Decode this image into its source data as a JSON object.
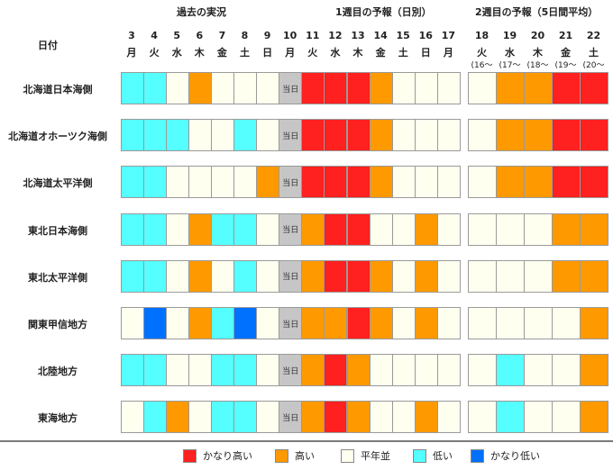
{
  "header": {
    "row_label_header": "日付",
    "section_past": "過去の実況",
    "section_week1": "1週目の予報（日別）",
    "section_week2": "2週目の予報（5日間平均）"
  },
  "colors": {
    "very_high": "#ff2020",
    "high": "#ff9900",
    "normal": "#fffff0",
    "low": "#55ffff",
    "very_low": "#0070ff",
    "today": "#c6c6c6"
  },
  "legend": [
    {
      "key": "very_high",
      "label": "かなり高い"
    },
    {
      "key": "high",
      "label": "高い"
    },
    {
      "key": "normal",
      "label": "平年並"
    },
    {
      "key": "low",
      "label": "低い"
    },
    {
      "key": "very_low",
      "label": "かなり低い"
    }
  ],
  "chart_data": {
    "type": "table",
    "today_label": "当日",
    "days": [
      {
        "day": "3",
        "dow": "月"
      },
      {
        "day": "4",
        "dow": "火"
      },
      {
        "day": "5",
        "dow": "水"
      },
      {
        "day": "6",
        "dow": "木"
      },
      {
        "day": "7",
        "dow": "金"
      },
      {
        "day": "8",
        "dow": "土"
      },
      {
        "day": "9",
        "dow": "日"
      },
      {
        "day": "10",
        "dow": "月"
      },
      {
        "day": "11",
        "dow": "火"
      },
      {
        "day": "12",
        "dow": "水"
      },
      {
        "day": "13",
        "dow": "木"
      },
      {
        "day": "14",
        "dow": "金"
      },
      {
        "day": "15",
        "dow": "土"
      },
      {
        "day": "16",
        "dow": "日"
      },
      {
        "day": "17",
        "dow": "月"
      }
    ],
    "today_index": 7,
    "periods": [
      {
        "day": "18",
        "dow": "火",
        "range1": "(16～",
        "range2": "20日)"
      },
      {
        "day": "19",
        "dow": "水",
        "range1": "(17～",
        "range2": "21日)"
      },
      {
        "day": "20",
        "dow": "木",
        "range1": "(18～",
        "range2": "22日)"
      },
      {
        "day": "21",
        "dow": "金",
        "range1": "(19～",
        "range2": "23日)"
      },
      {
        "day": "22",
        "dow": "土",
        "range1": "(20～",
        "range2": "24日)"
      }
    ],
    "regions": [
      {
        "name": "北海道日本海側",
        "daily": [
          "low",
          "low",
          "normal",
          "high",
          "normal",
          "normal",
          "normal",
          "today",
          "very_high",
          "very_high",
          "very_high",
          "high",
          "normal",
          "normal",
          "normal"
        ],
        "week2": [
          "normal",
          "high",
          "high",
          "very_high",
          "very_high"
        ]
      },
      {
        "name": "北海道オホーツク海側",
        "daily": [
          "low",
          "low",
          "low",
          "normal",
          "normal",
          "low",
          "normal",
          "today",
          "very_high",
          "very_high",
          "very_high",
          "high",
          "normal",
          "normal",
          "normal"
        ],
        "week2": [
          "normal",
          "high",
          "high",
          "very_high",
          "very_high"
        ]
      },
      {
        "name": "北海道太平洋側",
        "daily": [
          "low",
          "low",
          "normal",
          "normal",
          "normal",
          "normal",
          "high",
          "today",
          "very_high",
          "very_high",
          "very_high",
          "high",
          "normal",
          "normal",
          "normal"
        ],
        "week2": [
          "normal",
          "high",
          "high",
          "very_high",
          "very_high"
        ]
      },
      {
        "name": "東北日本海側",
        "daily": [
          "low",
          "low",
          "normal",
          "high",
          "low",
          "low",
          "normal",
          "today",
          "high",
          "very_high",
          "very_high",
          "normal",
          "normal",
          "high",
          "normal"
        ],
        "week2": [
          "normal",
          "normal",
          "normal",
          "high",
          "high"
        ]
      },
      {
        "name": "東北太平洋側",
        "daily": [
          "low",
          "low",
          "normal",
          "high",
          "normal",
          "low",
          "normal",
          "today",
          "high",
          "very_high",
          "very_high",
          "high",
          "normal",
          "high",
          "normal"
        ],
        "week2": [
          "normal",
          "normal",
          "normal",
          "high",
          "high"
        ]
      },
      {
        "name": "関東甲信地方",
        "daily": [
          "normal",
          "very_low",
          "normal",
          "high",
          "low",
          "very_low",
          "normal",
          "today",
          "high",
          "high",
          "very_high",
          "high",
          "normal",
          "high",
          "normal"
        ],
        "week2": [
          "normal",
          "normal",
          "normal",
          "normal",
          "high"
        ]
      },
      {
        "name": "北陸地方",
        "daily": [
          "low",
          "low",
          "normal",
          "normal",
          "low",
          "low",
          "normal",
          "today",
          "high",
          "very_high",
          "high",
          "normal",
          "normal",
          "normal",
          "normal"
        ],
        "week2": [
          "normal",
          "low",
          "normal",
          "normal",
          "high"
        ]
      },
      {
        "name": "東海地方",
        "daily": [
          "normal",
          "low",
          "high",
          "normal",
          "low",
          "low",
          "normal",
          "today",
          "high",
          "very_high",
          "high",
          "normal",
          "normal",
          "high",
          "normal"
        ],
        "week2": [
          "normal",
          "low",
          "normal",
          "normal",
          "high"
        ]
      }
    ]
  }
}
